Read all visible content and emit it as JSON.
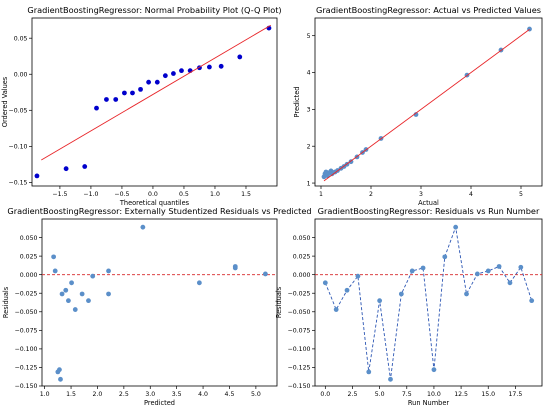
{
  "chart_data": [
    {
      "type": "scatter",
      "title": "GradientBoostingRegressor: Normal Probability Plot (Q-Q Plot)",
      "xlabel": "Theoretical quantiles",
      "ylabel": "Ordered Values",
      "xlim": [
        -1.95,
        2.0
      ],
      "ylim": [
        -0.155,
        0.078
      ],
      "xticks": [
        -1.5,
        -1.0,
        -0.5,
        0.0,
        0.5,
        1.0,
        1.5
      ],
      "xtick_labels": [
        "−1.5",
        "−1.0",
        "−0.5",
        "0.0",
        "0.5",
        "1.0",
        "1.5"
      ],
      "yticks": [
        -0.15,
        -0.1,
        -0.05,
        0.0,
        0.05
      ],
      "ytick_labels": [
        "−0.15",
        "−0.10",
        "−0.05",
        "0.00",
        "0.05"
      ],
      "grid": false,
      "series": [
        {
          "marker_color": "#0000cc",
          "x": [
            -1.87,
            -1.4,
            -1.1,
            -0.91,
            -0.75,
            -0.6,
            -0.46,
            -0.33,
            -0.2,
            -0.07,
            0.07,
            0.2,
            0.33,
            0.46,
            0.6,
            0.75,
            0.91,
            1.1,
            1.4,
            1.87
          ],
          "y": [
            -0.141,
            -0.131,
            -0.128,
            -0.047,
            -0.035,
            -0.035,
            -0.026,
            -0.026,
            -0.021,
            -0.011,
            -0.011,
            -0.002,
            0.001,
            0.005,
            0.005,
            0.009,
            0.01,
            0.011,
            0.024,
            0.064
          ]
        },
        {
          "line_color": "#e8262a",
          "x": [
            -1.8,
            1.9
          ],
          "y": [
            -0.119,
            0.068
          ]
        }
      ]
    },
    {
      "type": "scatter",
      "title": "GradientBoostingRegressor: Actual vs Predicted Values",
      "xlabel": "Actual",
      "ylabel": "Predicted",
      "xlim": [
        0.88,
        5.42
      ],
      "ylim": [
        0.92,
        5.48
      ],
      "xticks": [
        1,
        2,
        3,
        4,
        5
      ],
      "xtick_labels": [
        "1",
        "2",
        "3",
        "4",
        "5"
      ],
      "yticks": [
        1,
        2,
        3,
        4,
        5
      ],
      "ytick_labels": [
        "1",
        "2",
        "3",
        "4",
        "5"
      ],
      "grid": false,
      "series": [
        {
          "marker_color": "#5b8fc9",
          "x": [
            1.06,
            1.08,
            1.1,
            1.13,
            1.16,
            1.2,
            1.22,
            1.28,
            1.33,
            1.4,
            1.46,
            1.52,
            1.6,
            1.72,
            1.83,
            1.9,
            2.2,
            2.9,
            3.92,
            4.6,
            5.17
          ],
          "y": [
            1.17,
            1.25,
            1.3,
            1.2,
            1.28,
            1.33,
            1.25,
            1.3,
            1.34,
            1.4,
            1.45,
            1.51,
            1.58,
            1.71,
            1.83,
            1.91,
            2.21,
            2.86,
            3.93,
            4.61,
            5.18
          ]
        },
        {
          "line_color": "#e8262a",
          "x": [
            1.06,
            5.17
          ],
          "y": [
            1.06,
            5.17
          ]
        }
      ]
    },
    {
      "type": "scatter",
      "title": "GradientBoostingRegressor: Externally Studentized Residuals vs Predicted",
      "xlabel": "Predicted",
      "ylabel": "Residuals",
      "xlim": [
        0.95,
        5.4
      ],
      "ylim": [
        -0.15,
        0.075
      ],
      "xticks": [
        1.0,
        1.5,
        2.0,
        2.5,
        3.0,
        3.5,
        4.0,
        4.5,
        5.0
      ],
      "xtick_labels": [
        "1.0",
        "1.5",
        "2.0",
        "2.5",
        "3.0",
        "3.5",
        "4.0",
        "4.5",
        "5.0"
      ],
      "yticks": [
        -0.15,
        -0.125,
        -0.1,
        -0.075,
        -0.05,
        -0.025,
        0.0,
        0.025,
        0.05
      ],
      "ytick_labels": [
        "−0.150",
        "−0.125",
        "−0.100",
        "−0.075",
        "−0.050",
        "−0.025",
        "0.000",
        "0.025",
        "0.050"
      ],
      "reference_line_y": 0,
      "grid": false,
      "series": [
        {
          "marker_color": "#5b8fc9",
          "x": [
            1.17,
            1.2,
            1.25,
            1.28,
            1.3,
            1.33,
            1.4,
            1.45,
            1.51,
            1.58,
            1.71,
            1.83,
            1.91,
            2.21,
            2.21,
            2.86,
            3.93,
            4.61,
            4.61,
            5.18
          ],
          "y": [
            0.024,
            0.005,
            -0.131,
            -0.128,
            -0.141,
            -0.026,
            -0.021,
            -0.035,
            -0.011,
            -0.047,
            -0.026,
            -0.035,
            -0.002,
            0.005,
            -0.026,
            0.064,
            -0.011,
            0.011,
            0.009,
            0.001
          ]
        }
      ]
    },
    {
      "type": "line",
      "title": "GradientBoostingRegressor: Residuals vs Run Number",
      "xlabel": "Run Number",
      "ylabel": "Residuals",
      "xlim": [
        -0.95,
        19.95
      ],
      "ylim": [
        -0.15,
        0.075
      ],
      "xticks": [
        0.0,
        2.5,
        5.0,
        7.5,
        10.0,
        12.5,
        15.0,
        17.5
      ],
      "xtick_labels": [
        "0.0",
        "2.5",
        "5.0",
        "7.5",
        "10.0",
        "12.5",
        "15.0",
        "17.5"
      ],
      "yticks": [
        -0.15,
        -0.125,
        -0.1,
        -0.075,
        -0.05,
        -0.025,
        0.0,
        0.025,
        0.05
      ],
      "ytick_labels": [
        "−0.150",
        "−0.125",
        "−0.100",
        "−0.075",
        "−0.050",
        "−0.025",
        "0.000",
        "0.025",
        "0.050"
      ],
      "reference_line_y": 0,
      "grid": false,
      "series": [
        {
          "line_color": "#2b55b3",
          "marker_color": "#5b8fc9",
          "line_style": "dashed",
          "x": [
            0,
            1,
            2,
            3,
            4,
            5,
            6,
            7,
            8,
            9,
            10,
            11,
            12,
            13,
            14,
            15,
            16,
            17,
            18,
            19
          ],
          "y": [
            -0.011,
            -0.047,
            -0.021,
            -0.002,
            -0.131,
            -0.035,
            -0.141,
            -0.026,
            0.005,
            0.009,
            -0.128,
            0.024,
            0.064,
            -0.026,
            0.001,
            0.005,
            0.011,
            -0.011,
            0.01,
            -0.035
          ]
        }
      ]
    }
  ]
}
